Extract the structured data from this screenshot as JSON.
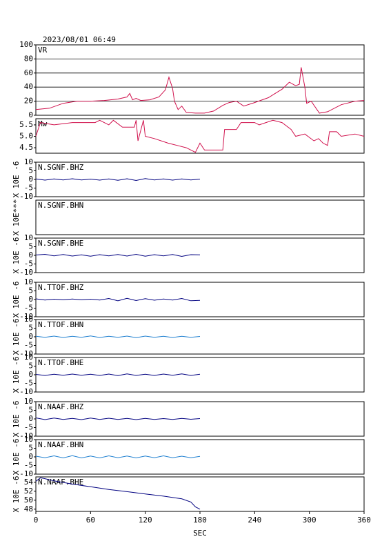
{
  "title": "2023/08/01 06:49",
  "xaxis": {
    "label": "SEC",
    "xlim": [
      0,
      360
    ],
    "xticks": [
      0,
      60,
      120,
      180,
      240,
      300,
      360
    ]
  },
  "chart_data": [
    {
      "type": "line",
      "label": "VR",
      "color": "#d0104c",
      "grid": true,
      "ylim": [
        0,
        100
      ],
      "yticks": [
        0,
        20,
        40,
        60,
        80,
        100
      ],
      "x": [
        0,
        15,
        30,
        45,
        60,
        75,
        90,
        100,
        103,
        106,
        110,
        115,
        125,
        135,
        142,
        146,
        150,
        152,
        156,
        160,
        165,
        175,
        185,
        195,
        205,
        212,
        220,
        228,
        240,
        255,
        265,
        270,
        278,
        285,
        289,
        291,
        295,
        297,
        302,
        311,
        320,
        335,
        350,
        360
      ],
      "values": [
        8,
        10,
        17,
        20,
        20,
        21,
        23,
        26,
        31,
        22,
        24,
        21,
        22,
        26,
        36,
        54,
        38,
        20,
        8,
        13,
        4,
        3,
        3,
        6,
        14,
        18,
        20,
        13,
        18,
        25,
        33,
        37,
        47,
        42,
        44,
        68,
        40,
        17,
        20,
        3,
        5,
        15,
        20,
        21
      ]
    },
    {
      "type": "line",
      "label": "Mw",
      "color": "#d0104c",
      "ylim": [
        4.26,
        5.77
      ],
      "yticks": [
        4.5,
        {
          "value": 5,
          "label": "5.0"
        },
        5.5
      ],
      "x": [
        0,
        5,
        20,
        40,
        65,
        70,
        80,
        85,
        95,
        108,
        110,
        112,
        118,
        120,
        130,
        145,
        155,
        165,
        175,
        180,
        185,
        205,
        207,
        220,
        225,
        240,
        245,
        260,
        270,
        280,
        285,
        295,
        305,
        310,
        315,
        320,
        322,
        330,
        335,
        350,
        360
      ],
      "values": [
        5.0,
        5.6,
        5.5,
        5.6,
        5.6,
        5.7,
        5.5,
        5.7,
        5.4,
        5.4,
        5.7,
        4.8,
        5.7,
        5.0,
        4.9,
        4.7,
        4.6,
        4.5,
        4.3,
        4.7,
        4.4,
        4.4,
        5.3,
        5.3,
        5.6,
        5.6,
        5.5,
        5.7,
        5.6,
        5.3,
        5.0,
        5.1,
        4.8,
        4.9,
        4.7,
        4.6,
        5.2,
        5.2,
        5.0,
        5.1,
        5.0
      ]
    },
    {
      "type": "line",
      "label": "N.SGNF.BHZ",
      "ylabel": "X 10E -6",
      "color": "#000080",
      "ylim": [
        -10,
        10
      ],
      "yticks": [
        -10,
        -5,
        0,
        5,
        10
      ],
      "x": [
        0,
        10,
        20,
        30,
        40,
        50,
        60,
        70,
        80,
        90,
        100,
        110,
        120,
        130,
        140,
        150,
        160,
        170,
        180
      ],
      "values": [
        0.3,
        -0.4,
        0.3,
        -0.3,
        0.4,
        -0.3,
        0.2,
        -0.4,
        0.3,
        -0.5,
        0.4,
        -0.6,
        0.5,
        -0.3,
        0.3,
        -0.4,
        0.3,
        -0.3,
        0.2
      ]
    },
    {
      "type": "line",
      "label": "N.SGNF.BHN",
      "ylabel": "X 10E***"
    },
    {
      "type": "line",
      "label": "N.SGNF.BHE",
      "ylabel": "X 10E -6",
      "color": "#000080",
      "ylim": [
        -10,
        10
      ],
      "yticks": [
        -10,
        -5,
        0,
        5,
        10
      ],
      "x": [
        0,
        10,
        20,
        30,
        40,
        50,
        60,
        70,
        80,
        90,
        100,
        110,
        120,
        130,
        140,
        150,
        160,
        170,
        180
      ],
      "values": [
        0.2,
        0.6,
        -0.3,
        0.5,
        -0.4,
        0.3,
        -0.5,
        0.4,
        -0.3,
        0.5,
        -0.4,
        0.6,
        -0.5,
        0.4,
        -0.3,
        0.5,
        -0.6,
        0.4,
        0.3
      ]
    },
    {
      "type": "line",
      "label": "N.TTOF.BHZ",
      "ylabel": "X 10E -6",
      "color": "#000080",
      "ylim": [
        -10,
        10
      ],
      "yticks": [
        -10,
        -5,
        0,
        5,
        10
      ],
      "x": [
        0,
        10,
        20,
        30,
        40,
        50,
        60,
        70,
        80,
        90,
        100,
        110,
        120,
        130,
        140,
        150,
        160,
        170,
        180
      ],
      "values": [
        0.4,
        -0.3,
        0.2,
        -0.2,
        0.3,
        -0.2,
        0.2,
        -0.3,
        0.6,
        -0.7,
        0.7,
        -0.6,
        0.5,
        -0.4,
        0.3,
        -0.3,
        0.6,
        -0.7,
        -0.5
      ]
    },
    {
      "type": "line",
      "label": "N.TTOF.BHN",
      "ylabel": "X 10E -6",
      "color": "#2080d0",
      "ylim": [
        -10,
        10
      ],
      "yticks": [
        -10,
        -5,
        0,
        5,
        10
      ],
      "x": [
        0,
        10,
        20,
        30,
        40,
        50,
        60,
        70,
        80,
        90,
        100,
        110,
        120,
        130,
        140,
        150,
        160,
        170,
        180
      ],
      "values": [
        0.3,
        -0.3,
        0.4,
        -0.4,
        0.3,
        -0.3,
        0.5,
        -0.4,
        0.3,
        -0.3,
        0.4,
        -0.5,
        0.4,
        -0.3,
        0.3,
        -0.4,
        0.3,
        -0.3,
        0.2
      ]
    },
    {
      "type": "line",
      "label": "N.TTOF.BHE",
      "ylabel": "X 10E -6",
      "color": "#000080",
      "ylim": [
        -10,
        10
      ],
      "yticks": [
        -10,
        -5,
        0,
        5,
        10
      ],
      "x": [
        0,
        10,
        20,
        30,
        40,
        50,
        60,
        70,
        80,
        90,
        100,
        110,
        120,
        130,
        140,
        150,
        160,
        170,
        180
      ],
      "values": [
        0.2,
        -0.4,
        0.3,
        -0.3,
        0.4,
        -0.3,
        0.3,
        -0.4,
        0.4,
        -0.5,
        0.5,
        -0.4,
        0.3,
        -0.4,
        0.4,
        -0.3,
        0.5,
        -0.4,
        0.3
      ]
    },
    {
      "type": "line",
      "label": "N.NAAF.BHZ",
      "ylabel": "X 10E -6",
      "color": "#000080",
      "ylim": [
        -10,
        10
      ],
      "yticks": [
        -10,
        -5,
        0,
        5,
        10
      ],
      "x": [
        0,
        10,
        20,
        30,
        40,
        50,
        60,
        70,
        80,
        90,
        100,
        110,
        120,
        130,
        140,
        150,
        160,
        170,
        180
      ],
      "values": [
        0.6,
        -0.4,
        0.5,
        -0.3,
        0.3,
        -0.4,
        0.5,
        -0.3,
        0.4,
        -0.3,
        0.3,
        -0.4,
        0.3,
        -0.3,
        0.2,
        -0.3,
        0.3,
        -0.2,
        0.2
      ]
    },
    {
      "type": "line",
      "label": "N.NAAF.BHN",
      "ylabel": "X 10E -6",
      "color": "#2080d0",
      "ylim": [
        -10,
        10
      ],
      "yticks": [
        -10,
        -5,
        0,
        5,
        10
      ],
      "x": [
        0,
        10,
        20,
        30,
        40,
        50,
        60,
        70,
        80,
        90,
        100,
        110,
        120,
        130,
        140,
        150,
        160,
        170,
        180
      ],
      "values": [
        0.4,
        -0.5,
        0.6,
        -0.6,
        0.7,
        -0.6,
        0.5,
        -0.6,
        0.6,
        -0.5,
        0.5,
        -0.6,
        0.5,
        -0.5,
        0.6,
        -0.5,
        0.4,
        -0.5,
        0.3
      ]
    },
    {
      "type": "line",
      "label": "N.NAAF.BHE",
      "ylabel": "X 10E -6",
      "color": "#000080",
      "ylim": [
        47.5,
        55.2
      ],
      "yticks": [
        48,
        50,
        52,
        54
      ],
      "x": [
        0,
        5,
        10,
        20,
        40,
        60,
        80,
        100,
        120,
        140,
        160,
        170,
        175,
        180
      ],
      "values": [
        54.2,
        55,
        54.8,
        54.3,
        53.6,
        53,
        52.4,
        51.9,
        51.4,
        50.9,
        50.3,
        49.6,
        48.5,
        48
      ]
    }
  ]
}
